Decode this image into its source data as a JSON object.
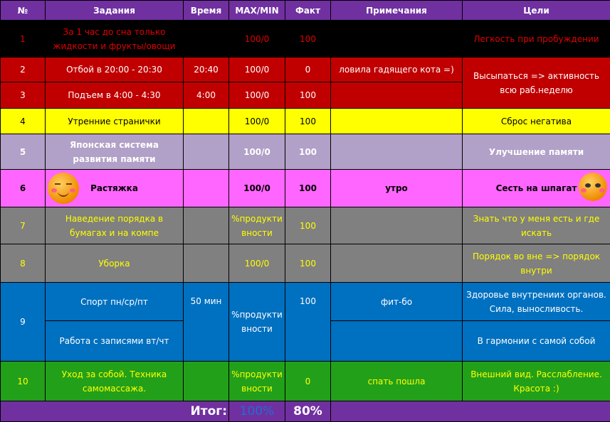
{
  "headers": [
    "№",
    "Задания",
    "Время",
    "MAX/MIN",
    "Факт",
    "Примечания",
    "Цели"
  ],
  "rows": [
    {
      "n": "1",
      "task": "За 1 час до сна только жидкости и фрукты/овощи",
      "time": "",
      "max": "100/0",
      "fact": "100",
      "note": "",
      "goal": "Легкость при пробуждении"
    },
    {
      "n": "2",
      "task": "Отбой в 20:00 - 20:30",
      "time": "20:40",
      "max": "100/0",
      "fact": "0",
      "note": "ловила гадящего кота =)",
      "goal": "Высыпаться => активность всю раб.неделю"
    },
    {
      "n": "3",
      "task": "Подъем в 4:00 - 4:30",
      "time": "4:00",
      "max": "100/0",
      "fact": "100",
      "note": ""
    },
    {
      "n": "4",
      "task": "Утренние странички",
      "time": "",
      "max": "100/0",
      "fact": "100",
      "note": "",
      "goal": "Сброс негатива"
    },
    {
      "n": "5",
      "task": "Японская система развития памяти",
      "time": "",
      "max": "100/0",
      "fact": "100",
      "note": "",
      "goal": "Улучшение памяти"
    },
    {
      "n": "6",
      "task": "Растяжка",
      "time": "",
      "max": "100/0",
      "fact": "100",
      "note": "утро",
      "goal": "Сесть на шпагат"
    },
    {
      "n": "7",
      "task": "Наведение порядка в бумагах и на компе",
      "time": "",
      "max": "%продуктивности",
      "fact": "100",
      "note": "",
      "goal": "Знать что у меня есть и где искать"
    },
    {
      "n": "8",
      "task": "Уборка",
      "time": "",
      "max": "100/0",
      "fact": "100",
      "note": "",
      "goal": "Порядок во вне => порядок внутри"
    },
    {
      "n": "9",
      "task": "Спорт пн/ср/пт",
      "time": "50 мин",
      "max": "%продуктивности",
      "fact": "100",
      "note": "фит-бо",
      "goal": "Здоровье внутрениих органов. Сила, выносливость.",
      "task2": "Работа с записями вт/чт",
      "note2": "",
      "goal2": "В гармонии с самой собой"
    },
    {
      "n": "10",
      "task": "Уход за собой. Техника самомассажа.",
      "time": "",
      "max": "%продуктивности",
      "fact": "0",
      "note": "спать пошла",
      "goal": "Внешний вид. Расслабление. Красота :)"
    }
  ],
  "total": {
    "label": "Итог:",
    "max": "100%",
    "fact": "80%"
  },
  "colors": {
    "header": "#7030a0",
    "red": "#c00000",
    "yellow": "#ffff00",
    "lavender": "#b1a0c7",
    "pink": "#ff66ff",
    "gray": "#808080",
    "blue": "#0070c0",
    "green": "#23a01a"
  }
}
